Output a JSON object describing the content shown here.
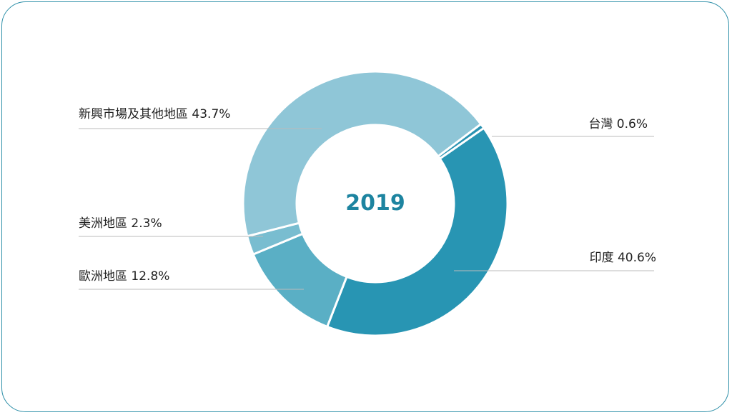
{
  "chart_data": {
    "type": "pie",
    "center_label": "2019",
    "slices": [
      {
        "label": "台灣",
        "value": 0.6,
        "display": "台灣 0.6%",
        "color": "#2a93b2"
      },
      {
        "label": "印度",
        "value": 40.6,
        "display": "印度 40.6%",
        "color": "#2895b3"
      },
      {
        "label": "歐洲地區",
        "value": 12.8,
        "display": "歐洲地區 12.8%",
        "color": "#5aafc5"
      },
      {
        "label": "美洲地區",
        "value": 2.3,
        "display": "美洲地區 2.3%",
        "color": "#79bdd0"
      },
      {
        "label": "新興市場及其他地區",
        "value": 43.7,
        "display": "新興市場及其他地區 43.7%",
        "color": "#8fc6d7"
      }
    ],
    "legend": "none"
  }
}
